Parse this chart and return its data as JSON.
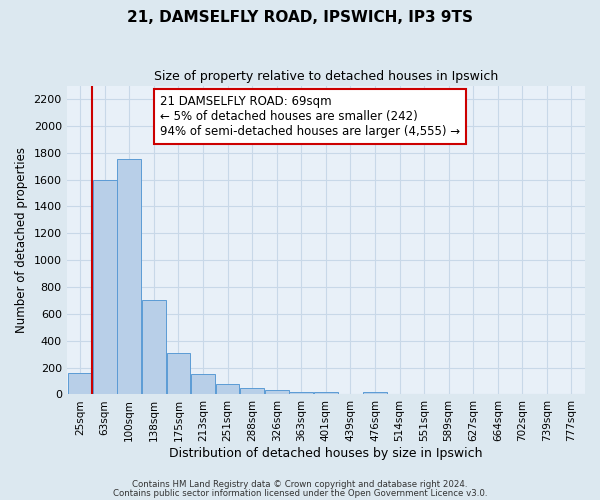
{
  "title": "21, DAMSELFLY ROAD, IPSWICH, IP3 9TS",
  "subtitle": "Size of property relative to detached houses in Ipswich",
  "xlabel": "Distribution of detached houses by size in Ipswich",
  "ylabel": "Number of detached properties",
  "bin_labels": [
    "25sqm",
    "63sqm",
    "100sqm",
    "138sqm",
    "175sqm",
    "213sqm",
    "251sqm",
    "288sqm",
    "326sqm",
    "363sqm",
    "401sqm",
    "439sqm",
    "476sqm",
    "514sqm",
    "551sqm",
    "589sqm",
    "627sqm",
    "664sqm",
    "702sqm",
    "739sqm",
    "777sqm"
  ],
  "bar_heights": [
    160,
    1600,
    1750,
    700,
    310,
    155,
    80,
    50,
    30,
    20,
    15,
    0,
    15,
    0,
    0,
    0,
    0,
    0,
    0,
    0,
    0
  ],
  "bar_color": "#b8cfe8",
  "bar_edge_color": "#5b9bd5",
  "red_line_x": 0.5,
  "ylim": [
    0,
    2300
  ],
  "yticks": [
    0,
    200,
    400,
    600,
    800,
    1000,
    1200,
    1400,
    1600,
    1800,
    2000,
    2200
  ],
  "annotation_title": "21 DAMSELFLY ROAD: 69sqm",
  "annotation_line1": "← 5% of detached houses are smaller (242)",
  "annotation_line2": "94% of semi-detached houses are larger (4,555) →",
  "annotation_box_color": "#ffffff",
  "annotation_box_edge": "#cc0000",
  "vline_color": "#cc0000",
  "footer1": "Contains HM Land Registry data © Crown copyright and database right 2024.",
  "footer2": "Contains public sector information licensed under the Open Government Licence v3.0.",
  "bg_color": "#dce8f0",
  "plot_bg_color": "#e8f0f8",
  "grid_color": "#c8d8e8",
  "title_fontsize": 11,
  "subtitle_fontsize": 9
}
